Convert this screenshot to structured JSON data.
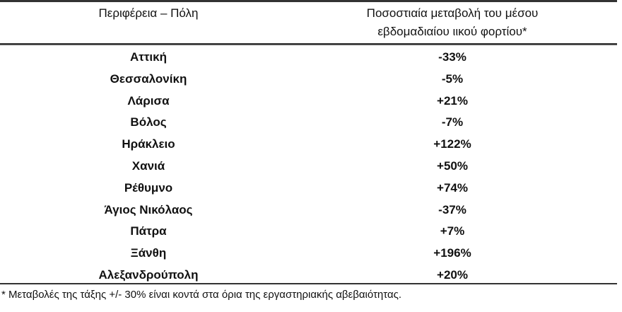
{
  "table": {
    "headers": [
      "Περιφέρεια – Πόλη",
      "Ποσοστιαία μεταβολή του μέσου",
      "εβδομαδιαίου ιικού φορτίου*"
    ],
    "rows": [
      {
        "city": "Αττική",
        "change": "-33%"
      },
      {
        "city": "Θεσσαλονίκη",
        "change": "-5%"
      },
      {
        "city": "Λάρισα",
        "change": "+21%"
      },
      {
        "city": "Βόλος",
        "change": "-7%"
      },
      {
        "city": "Ηράκλειο",
        "change": "+122%"
      },
      {
        "city": "Χανιά",
        "change": "+50%"
      },
      {
        "city": "Ρέθυμνο",
        "change": "+74%"
      },
      {
        "city": "Άγιος Νικόλαος",
        "change": "-37%"
      },
      {
        "city": "Πάτρα",
        "change": "+7%"
      },
      {
        "city": "Ξάνθη",
        "change": "+196%"
      },
      {
        "city": "Αλεξανδρούπολη",
        "change": "+20%"
      }
    ],
    "footnote": "* Μεταβολές της τάξης +/- 30% είναι κοντά στα όρια της εργαστηριακής αβεβαιότητας."
  }
}
